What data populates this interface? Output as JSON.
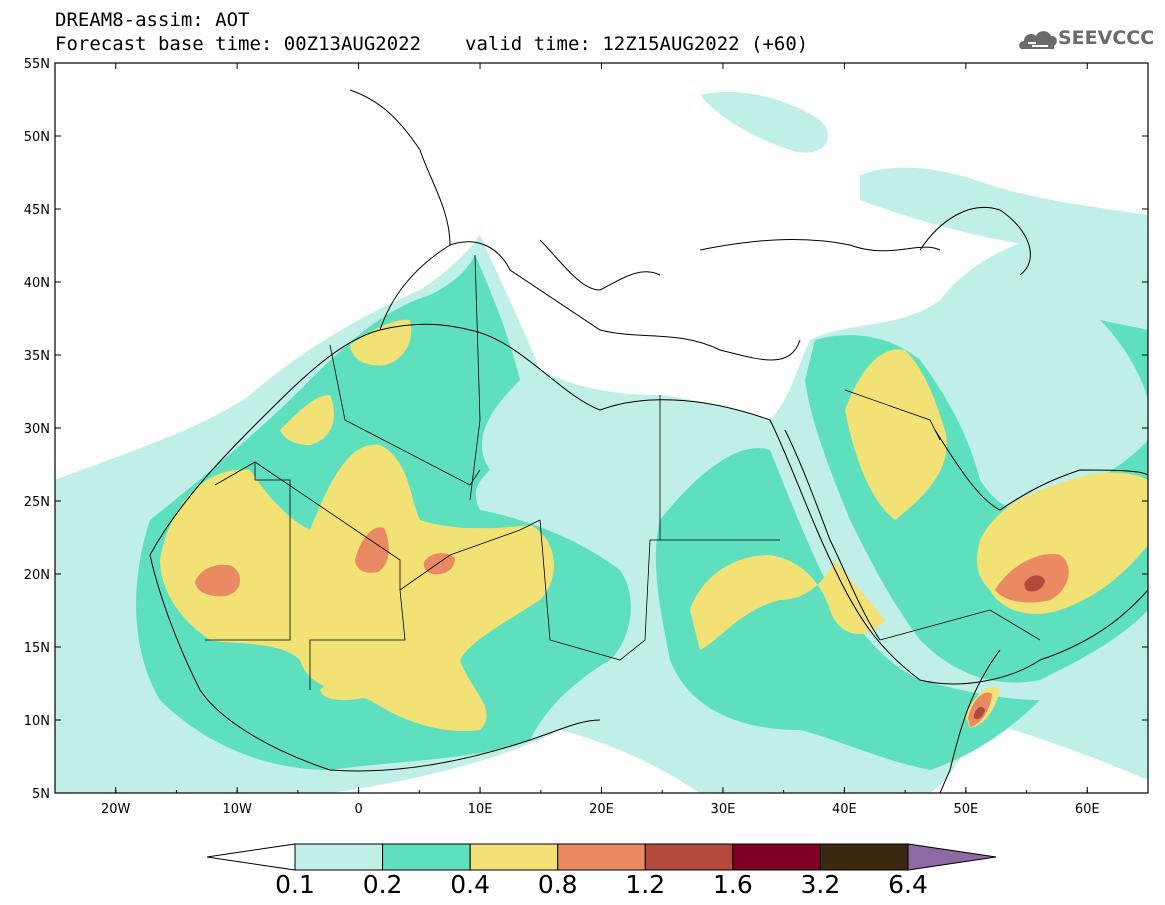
{
  "header": {
    "line1": "DREAM8-assim: AOT",
    "base_time": "Forecast base time: 00Z13AUG2022",
    "valid_time": "valid time: 12Z15AUG2022 (+60)"
  },
  "logo": {
    "text": "SEEVCCC",
    "icon": "cloud-icon"
  },
  "axes": {
    "lat_labels": [
      "55N",
      "50N",
      "45N",
      "40N",
      "35N",
      "30N",
      "25N",
      "20N",
      "15N",
      "10N",
      "5N"
    ],
    "lon_labels": [
      "20W",
      "10W",
      "0",
      "10E",
      "20E",
      "30E",
      "40E",
      "50E",
      "60E"
    ],
    "lon_range": [
      -25,
      65
    ],
    "lat_range": [
      5,
      55
    ]
  },
  "colorbar": {
    "thresholds": [
      "0.1",
      "0.2",
      "0.4",
      "0.8",
      "1.2",
      "1.6",
      "3.2",
      "6.4"
    ],
    "colors": [
      "#ffffff",
      "#bfefe6",
      "#5ee0bf",
      "#f2e276",
      "#e98a63",
      "#b24a3c",
      "#800026",
      "#3d2812",
      "#8e6aa3"
    ]
  },
  "map_colors": {
    "ocean": "#ffffff",
    "border": "#000000",
    "class1": "#bfefe6",
    "class2": "#5ee0bf",
    "class3": "#f2e276",
    "class4": "#e98a63",
    "class5": "#b24a3c"
  }
}
